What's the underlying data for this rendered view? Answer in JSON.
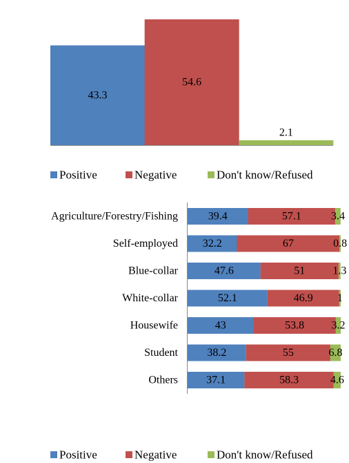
{
  "colors": {
    "positive": "#4f81bd",
    "negative": "#c0504d",
    "dont_know": "#9bbb59",
    "axis": "#888888"
  },
  "chart_data": [
    {
      "type": "bar",
      "categories": [
        "Positive",
        "Negative",
        "Don't know/Refused"
      ],
      "values": [
        43.3,
        54.6,
        2.1
      ],
      "ylim": [
        0,
        60
      ],
      "legend": {
        "position": "bottom",
        "entries": [
          "Positive",
          "Negative",
          "Don't know/Refused"
        ]
      },
      "grid": false
    },
    {
      "type": "bar",
      "orientation": "horizontal",
      "stacked": true,
      "categories": [
        "Agriculture/Forestry/Fishing",
        "Self-employed",
        "Blue-collar",
        "White-collar",
        "Housewife",
        "Student",
        "Others"
      ],
      "series": [
        {
          "name": "Positive",
          "values": [
            39.4,
            32.2,
            47.6,
            52.1,
            43,
            38.2,
            37.1
          ]
        },
        {
          "name": "Negative",
          "values": [
            57.1,
            67,
            51,
            46.9,
            53.8,
            55,
            58.3
          ]
        },
        {
          "name": "Don't know/Refused",
          "values": [
            3.4,
            0.8,
            1.3,
            1,
            3.2,
            6.8,
            4.6
          ]
        }
      ],
      "xlim": [
        0,
        100
      ],
      "legend": {
        "position": "bottom",
        "entries": [
          "Positive",
          "Negative",
          "Don't know/Refused"
        ]
      },
      "grid": false
    }
  ]
}
